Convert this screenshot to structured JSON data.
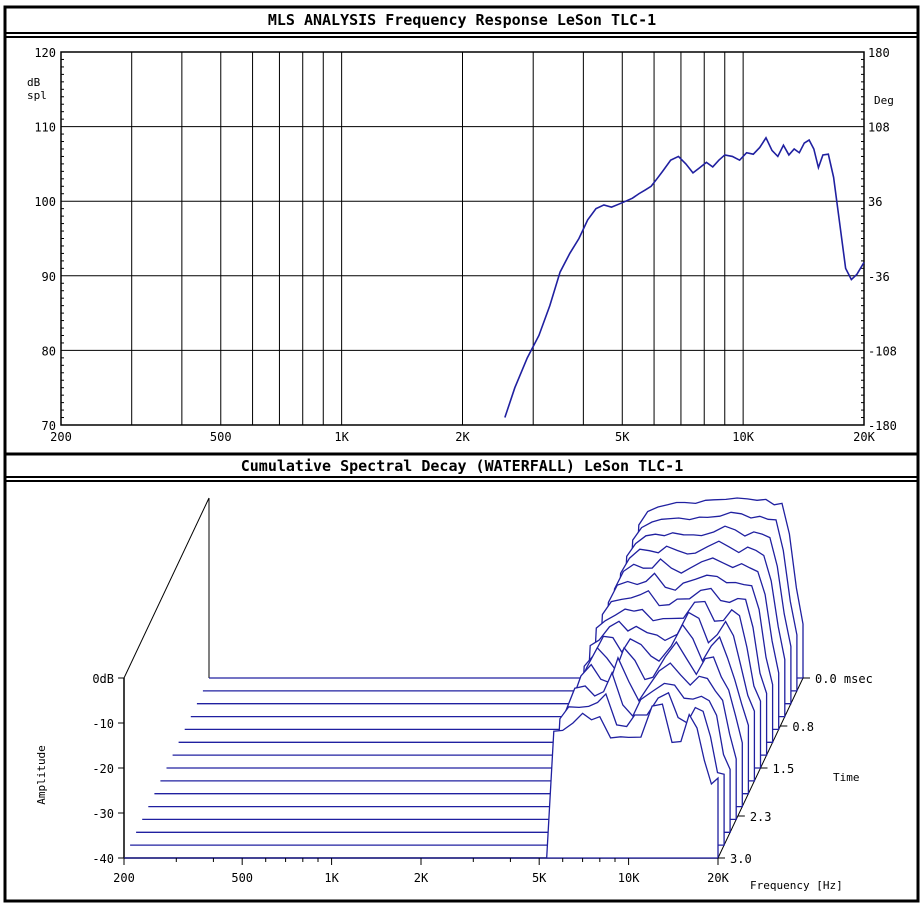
{
  "chart_data": [
    {
      "type": "line",
      "title": "MLS ANALYSIS Frequency Response  LeSon TLC-1",
      "ylabel": "dB\nspl",
      "ylabel_lines": [
        "dB",
        "spl"
      ],
      "y2label": "Deg",
      "xscale": "log",
      "xlim": [
        200,
        20000
      ],
      "ylim": [
        70,
        120
      ],
      "y2lim": [
        -180,
        180
      ],
      "yticks": [
        70,
        80,
        90,
        100,
        110,
        120
      ],
      "y2ticks": [
        -180,
        -108,
        -36,
        36,
        108,
        180
      ],
      "xtick_labels": [
        {
          "value": 200,
          "label": "200"
        },
        {
          "value": 500,
          "label": "500"
        },
        {
          "value": 1000,
          "label": "1K"
        },
        {
          "value": 2000,
          "label": "2K"
        },
        {
          "value": 5000,
          "label": "5K"
        },
        {
          "value": 10000,
          "label": "10K"
        },
        {
          "value": 20000,
          "label": "20K"
        }
      ],
      "grid": true,
      "line_color": "#2020a0",
      "series": [
        {
          "x": [
            2550,
            2700,
            2900,
            3100,
            3300,
            3500,
            3700,
            3900,
            4100,
            4300,
            4500,
            4700,
            4900,
            5100,
            5300,
            5500,
            5700,
            5900,
            6100,
            6300,
            6600,
            6900,
            7200,
            7500,
            7800,
            8100,
            8400,
            8700,
            9000,
            9400,
            9800,
            10200,
            10600,
            11000,
            11400,
            11800,
            12200,
            12600,
            13000,
            13400,
            13800,
            14200,
            14600,
            15000,
            15400,
            15800,
            16300,
            16800,
            17400,
            18000,
            18600,
            19200,
            19600,
            20000
          ],
          "y": [
            71,
            75,
            79,
            82,
            86,
            90.5,
            93,
            95,
            97.5,
            99,
            99.5,
            99.2,
            99.6,
            100,
            100.4,
            101,
            101.5,
            102,
            103,
            104,
            105.5,
            106,
            105,
            103.8,
            104.5,
            105.2,
            104.6,
            105.5,
            106.2,
            106,
            105.5,
            106.5,
            106.3,
            107.2,
            108.5,
            106.8,
            106,
            107.5,
            106.2,
            107,
            106.5,
            107.8,
            108.2,
            107,
            104.5,
            106.2,
            106.3,
            103.2,
            97,
            91,
            89.5,
            90.2,
            91,
            91.8
          ]
        }
      ]
    },
    {
      "type": "area",
      "subtype": "waterfall",
      "title": "Cumulative Spectral Decay (WATERFALL) LeSon TLC-1",
      "ylabel": "Amplitude",
      "xlabel": "Frequency [Hz]",
      "zlabel": "Time",
      "xscale": "log",
      "xlim": [
        200,
        20000
      ],
      "ylim": [
        -40,
        0
      ],
      "yticks": [
        {
          "value": 0,
          "label": "0dB"
        },
        {
          "value": -10,
          "label": "-10"
        },
        {
          "value": -20,
          "label": "-20"
        },
        {
          "value": -30,
          "label": "-30"
        },
        {
          "value": -40,
          "label": "-40"
        }
      ],
      "xtick_labels": [
        {
          "value": 200,
          "label": "200"
        },
        {
          "value": 500,
          "label": "500"
        },
        {
          "value": 1000,
          "label": "1K"
        },
        {
          "value": 2000,
          "label": "2K"
        },
        {
          "value": 5000,
          "label": "5K"
        },
        {
          "value": 10000,
          "label": "10K"
        },
        {
          "value": 20000,
          "label": "20K"
        }
      ],
      "time_ticks": [
        {
          "value": 0.0,
          "label": "0.0 msec"
        },
        {
          "value": 0.8,
          "label": "0.8"
        },
        {
          "value": 1.5,
          "label": "1.5"
        },
        {
          "value": 2.3,
          "label": "2.3"
        },
        {
          "value": 3.0,
          "label": "3.0"
        }
      ],
      "slices": 15,
      "slice_interval_ms": 0.2,
      "line_color": "#2020a0",
      "base_frequencies": [
        5300,
        5600,
        6000,
        6500,
        7000,
        7500,
        8000,
        8700,
        9400,
        10000,
        11000,
        12000,
        13000,
        14000,
        15000,
        16000,
        17000,
        18000,
        19000,
        20000
      ],
      "front_slice_db": [
        -40,
        -14,
        -11,
        -8,
        -9,
        -11,
        -7,
        -12,
        -15,
        -14,
        -11,
        -6,
        -8,
        -14,
        -12,
        -9,
        -13,
        -17,
        -22,
        -24
      ],
      "decay_db_per_slice": 2.2
    }
  ]
}
